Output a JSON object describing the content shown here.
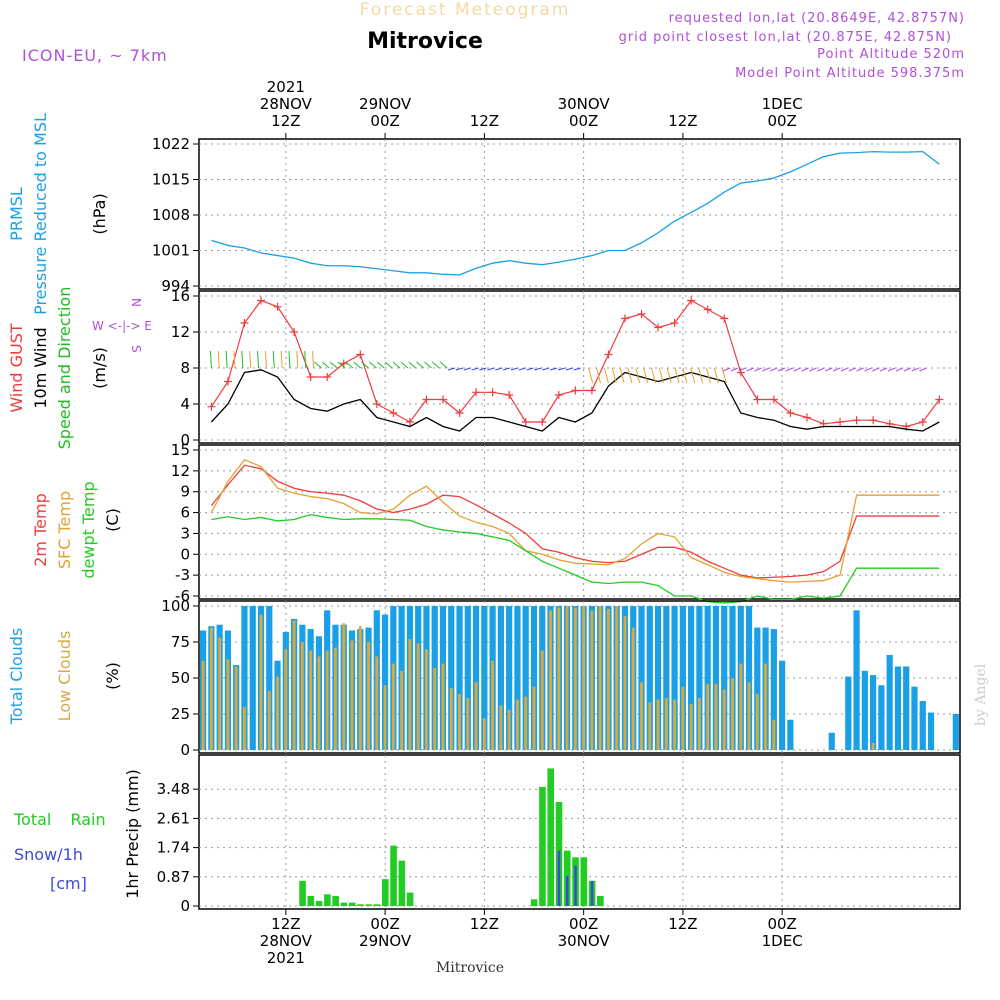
{
  "header": {
    "product": "Forecast Meteogram",
    "location": "Mitrovice",
    "model": "ICON-EU, ~ 7km",
    "requested": "requested lon,lat (20.8649E, 42.8757N)",
    "grid_point": "grid point closest lon,lat (20.875E, 42.875N)",
    "point_altitude": "Point Altitude 520m",
    "model_altitude": "Model Point Altitude 598.375m",
    "watermark": "by Angel",
    "footer": "Mitrovice"
  },
  "time_axis": {
    "top_labels": [
      [
        "2021",
        "28NOV",
        "12Z"
      ],
      [
        "29NOV",
        "00Z"
      ],
      [
        "12Z"
      ],
      [
        "30NOV",
        "00Z"
      ],
      [
        "12Z"
      ],
      [
        "1DEC",
        "00Z"
      ]
    ],
    "bottom_labels": [
      [
        "12Z",
        "28NOV",
        "2021"
      ],
      [
        "00Z",
        "29NOV"
      ],
      [
        "12Z"
      ],
      [
        "00Z",
        "30NOV"
      ],
      [
        "12Z"
      ],
      [
        "00Z",
        "1DEC"
      ]
    ],
    "tick_hours": [
      0,
      12,
      24,
      36,
      48,
      60
    ]
  },
  "panels": {
    "pressure": {
      "labels": [
        "PRMSL",
        "Pressure Reduced to MSL"
      ],
      "unit": "(hPa)",
      "ticks": [
        "994",
        "1001",
        "1008",
        "1015",
        "1022"
      ],
      "colors": {
        "series": "#1aa0e6",
        "label": "#1aa0e6"
      }
    },
    "wind": {
      "labels": [
        "Wind GUST",
        "10m Wind",
        "Speed and Direction"
      ],
      "unit": "(m/s)",
      "ticks": [
        "0",
        "4",
        "8",
        "12",
        "16"
      ],
      "compass": [
        "N",
        "W <-|-> E",
        "S"
      ],
      "colors": {
        "gust": "#f03c3c",
        "wind": "#000000",
        "dir": "#22bb22"
      }
    },
    "temperature": {
      "labels": [
        "2m Temp",
        "SFC Temp",
        "dewpt Temp"
      ],
      "unit": "(C)",
      "ticks": [
        "-6",
        "-3",
        "0",
        "3",
        "6",
        "9",
        "12",
        "15"
      ],
      "colors": {
        "t2m": "#f03c3c",
        "sfc": "#e6a030",
        "dew": "#22cc22"
      }
    },
    "clouds": {
      "labels": [
        "Total Clouds",
        "Low Clouds"
      ],
      "unit": "(%)",
      "ticks": [
        "0",
        "25",
        "50",
        "75",
        "100"
      ],
      "colors": {
        "total": "#1aa0e6",
        "low": "#d9a941"
      }
    },
    "precip": {
      "labels": [
        "Total Rain",
        "Snow/1h",
        "[cm]"
      ],
      "unit": "1hr Precip (mm)",
      "ticks": [
        "0",
        "0.87",
        "1.74",
        "2.61",
        "3.48"
      ],
      "colors": {
        "rain": "#22cc22",
        "snow": "#3a4bd8"
      }
    }
  },
  "chart_data": [
    {
      "type": "line",
      "title": "PRMSL Pressure Reduced to MSL",
      "ylabel": "(hPa)",
      "ylim": [
        994,
        1022
      ],
      "x_hours": [
        -9,
        -7,
        -5,
        -3,
        -1,
        1,
        3,
        5,
        7,
        9,
        11,
        13,
        15,
        17,
        19,
        21,
        23,
        25,
        27,
        29,
        31,
        33,
        35,
        37,
        39,
        41,
        43,
        45,
        47,
        49,
        51,
        53,
        55,
        57,
        59,
        61,
        63,
        65,
        67,
        69,
        71,
        73,
        75,
        77,
        79
      ],
      "series": [
        {
          "values": [
            1003,
            1002,
            1001.5,
            1000.5,
            1000,
            999.5,
            998.5,
            998,
            998,
            997.8,
            997.4,
            997,
            996.6,
            996.6,
            996.3,
            996.2,
            997.5,
            998.5,
            999,
            998.5,
            998.2,
            998.7,
            999.3,
            1000,
            1001,
            1001,
            1002.5,
            1004.5,
            1006.8,
            1008.5,
            1010.3,
            1012.5,
            1014.3,
            1014.7,
            1015.3,
            1016.5,
            1018,
            1019.5,
            1020.2,
            1020.3,
            1020.5,
            1020.4,
            1020.4,
            1020.5,
            1018
          ]
        }
      ]
    },
    {
      "type": "line",
      "title": "Wind GUST / 10m Wind Speed and Direction",
      "ylabel": "(m/s)",
      "ylim": [
        0,
        16
      ],
      "x_hours": [
        -9,
        -7,
        -5,
        -3,
        -1,
        1,
        3,
        5,
        7,
        9,
        11,
        13,
        15,
        17,
        19,
        21,
        23,
        25,
        27,
        29,
        31,
        33,
        35,
        37,
        39,
        41,
        43,
        45,
        47,
        49,
        51,
        53,
        55,
        57,
        59,
        61,
        63,
        65,
        67,
        69,
        71,
        73,
        75,
        77,
        79
      ],
      "series": [
        {
          "name": "Wind GUST",
          "values": [
            3.7,
            6.5,
            13,
            15.5,
            14.8,
            12,
            7,
            7,
            8.5,
            9.5,
            4,
            3,
            2,
            4.5,
            4.5,
            3,
            5.3,
            5.3,
            5,
            2,
            2,
            5,
            5.5,
            5.5,
            9.5,
            13.5,
            14,
            12.5,
            13,
            15.5,
            14.5,
            13.5,
            7.5,
            4.5,
            4.5,
            3,
            2.5,
            1.8,
            2,
            2.2,
            2.2,
            1.8,
            1.5,
            2,
            4.5
          ]
        },
        {
          "name": "10m Wind",
          "values": [
            2,
            4,
            7.5,
            7.8,
            7,
            4.5,
            3.5,
            3.2,
            4,
            4.5,
            2.5,
            2,
            1.5,
            2.5,
            1.5,
            1,
            2.5,
            2.5,
            2,
            1.5,
            1,
            2.5,
            2,
            3,
            6,
            7.5,
            7,
            6.5,
            7,
            7.5,
            7,
            6.5,
            3,
            2.5,
            2.2,
            1.5,
            1.2,
            1.5,
            1.5,
            1.5,
            1.5,
            1.5,
            1.2,
            1,
            2
          ]
        }
      ]
    },
    {
      "type": "line",
      "title": "2m Temp / SFC Temp / dewpt Temp",
      "ylabel": "(C)",
      "ylim": [
        -6,
        15
      ],
      "x_hours": [
        -9,
        -7,
        -5,
        -3,
        -1,
        1,
        3,
        5,
        7,
        9,
        11,
        13,
        15,
        17,
        19,
        21,
        23,
        25,
        27,
        29,
        31,
        33,
        35,
        37,
        39,
        41,
        43,
        45,
        47,
        49,
        51,
        53,
        55,
        57,
        59,
        61,
        63,
        65,
        67,
        69,
        71,
        73,
        75,
        77,
        79
      ],
      "series": [
        {
          "name": "2m Temp",
          "values": [
            7,
            10,
            12.8,
            12.3,
            10.5,
            9.5,
            9,
            8.8,
            8.5,
            7.7,
            6.5,
            6,
            6.5,
            7.2,
            8.5,
            8.3,
            7.1,
            5.8,
            4.5,
            3,
            0.8,
            0.3,
            -0.5,
            -1,
            -1.2,
            -1,
            0,
            1,
            1,
            0.3,
            -1,
            -2,
            -3,
            -3.4,
            -3.3,
            -3.2,
            -3,
            -2.5,
            -1,
            5.5,
            5.5,
            5.5,
            5.5,
            5.5,
            5.5
          ]
        },
        {
          "name": "SFC Temp",
          "values": [
            6,
            10.5,
            13.6,
            12.6,
            9.5,
            8.8,
            8.3,
            8,
            7.3,
            6,
            5.8,
            6.5,
            8.5,
            9.8,
            7.5,
            5.5,
            4.6,
            4,
            3,
            0.5,
            0,
            -0.8,
            -1.3,
            -1.4,
            -1.5,
            -0.6,
            1.5,
            3,
            2.5,
            -0.5,
            -1.5,
            -2.6,
            -3.2,
            -3.5,
            -3.8,
            -4,
            -3.9,
            -3.8,
            -3,
            8.5,
            8.5,
            8.5,
            8.5,
            8.5,
            8.5
          ]
        },
        {
          "name": "dewpt Temp",
          "values": [
            5,
            5.4,
            5,
            5.3,
            4.8,
            5,
            5.7,
            5.3,
            5,
            5.1,
            5.1,
            5,
            4.9,
            4,
            3.5,
            3.2,
            3,
            2.5,
            2,
            0.5,
            -1,
            -2,
            -3,
            -4,
            -4.2,
            -4,
            -4,
            -4.5,
            -6,
            -6,
            -6.8,
            -7,
            -6.8,
            -6,
            -6.5,
            -6.5,
            -6,
            -6.3,
            -6,
            -2,
            -2,
            -2,
            -2,
            -2,
            -2
          ]
        }
      ]
    },
    {
      "type": "bar",
      "title": "Total Clouds / Low Clouds",
      "ylabel": "(%)",
      "ylim": [
        0,
        100
      ],
      "x_hours_start": -9,
      "x_hours_step": 1,
      "series": [
        {
          "name": "Total Clouds",
          "values": [
            83,
            86,
            87,
            83,
            59,
            100,
            100,
            100,
            100,
            62,
            82,
            91,
            87,
            84,
            79,
            97,
            87,
            87,
            83,
            84,
            85,
            97,
            94,
            100,
            100,
            100,
            100,
            100,
            100,
            100,
            100,
            100,
            100,
            100,
            100,
            100,
            100,
            100,
            100,
            100,
            100,
            100,
            100,
            100,
            100,
            100,
            100,
            100,
            100,
            100,
            100,
            100,
            100,
            100,
            100,
            100,
            100,
            100,
            100,
            100,
            100,
            100,
            100,
            100,
            100,
            100,
            100,
            85,
            85,
            84,
            62,
            21,
            0,
            0,
            0,
            0,
            12,
            0,
            51,
            97,
            55,
            52,
            45,
            66,
            58,
            58,
            44,
            34,
            26,
            0,
            0,
            25
          ]
        },
        {
          "name": "Low Clouds",
          "values": [
            62,
            85,
            78,
            63,
            58,
            30,
            0,
            94,
            41,
            51,
            70,
            90,
            75,
            69,
            65,
            69,
            71,
            88,
            76,
            86,
            75,
            65,
            45,
            60,
            55,
            77,
            74,
            70,
            57,
            60,
            43,
            39,
            36,
            47,
            22,
            62,
            31,
            28,
            35,
            37,
            44,
            69,
            97,
            99,
            100,
            99,
            100,
            97,
            100,
            98,
            100,
            93,
            85,
            47,
            33,
            35,
            36,
            35,
            44,
            32,
            36,
            46,
            46,
            42,
            50,
            60,
            47,
            39,
            60,
            21,
            0,
            0,
            0,
            0,
            0,
            0,
            0,
            0,
            0,
            0,
            0,
            5,
            0,
            0,
            0,
            0,
            0,
            0,
            0,
            0,
            0
          ]
        }
      ]
    },
    {
      "type": "bar",
      "title": "Total Rain / Snow/1h",
      "ylabel": "1hr Precip (mm)",
      "ylim": [
        0,
        4.35
      ],
      "x_hours_start": -9,
      "x_hours_step": 1,
      "series": [
        {
          "name": "Total Rain",
          "values": [
            0,
            0,
            0,
            0,
            0,
            0,
            0,
            0,
            0,
            0,
            0,
            0,
            0.75,
            0.3,
            0.15,
            0.35,
            0.3,
            0.1,
            0.1,
            0.05,
            0.05,
            0.05,
            0.8,
            1.8,
            1.35,
            0.4,
            0,
            0,
            0,
            0,
            0,
            0,
            0,
            0,
            0,
            0,
            0,
            0,
            0,
            0,
            0.2,
            3.55,
            4.1,
            3.1,
            1.65,
            1.45,
            1.45,
            0.75,
            0.3,
            0,
            0,
            0,
            0,
            0,
            0,
            0,
            0,
            0,
            0,
            0,
            0,
            0,
            0,
            0,
            0,
            0,
            0,
            0,
            0,
            0,
            0,
            0,
            0,
            0,
            0,
            0,
            0,
            0,
            0,
            0,
            0,
            0,
            0,
            0,
            0,
            0,
            0,
            0,
            0,
            0
          ]
        },
        {
          "name": "Snow/1h",
          "values": [
            0,
            0,
            0,
            0,
            0,
            0,
            0,
            0,
            0,
            0,
            0,
            0,
            0,
            0,
            0,
            0,
            0,
            0,
            0,
            0,
            0,
            0,
            0,
            0,
            0,
            0,
            0,
            0,
            0,
            0,
            0,
            0,
            0,
            0,
            0,
            0,
            0,
            0,
            0,
            0,
            0,
            0,
            0,
            1.65,
            0.9,
            1.2,
            0,
            0.75,
            0,
            0,
            0,
            0,
            0,
            0,
            0,
            0,
            0,
            0,
            0,
            0,
            0,
            0,
            0,
            0,
            0,
            0,
            0,
            0,
            0,
            0,
            0,
            0,
            0,
            0,
            0,
            0,
            0,
            0,
            0,
            0,
            0,
            0,
            0,
            0,
            0,
            0,
            0,
            0,
            0,
            0,
            0
          ]
        }
      ]
    }
  ]
}
